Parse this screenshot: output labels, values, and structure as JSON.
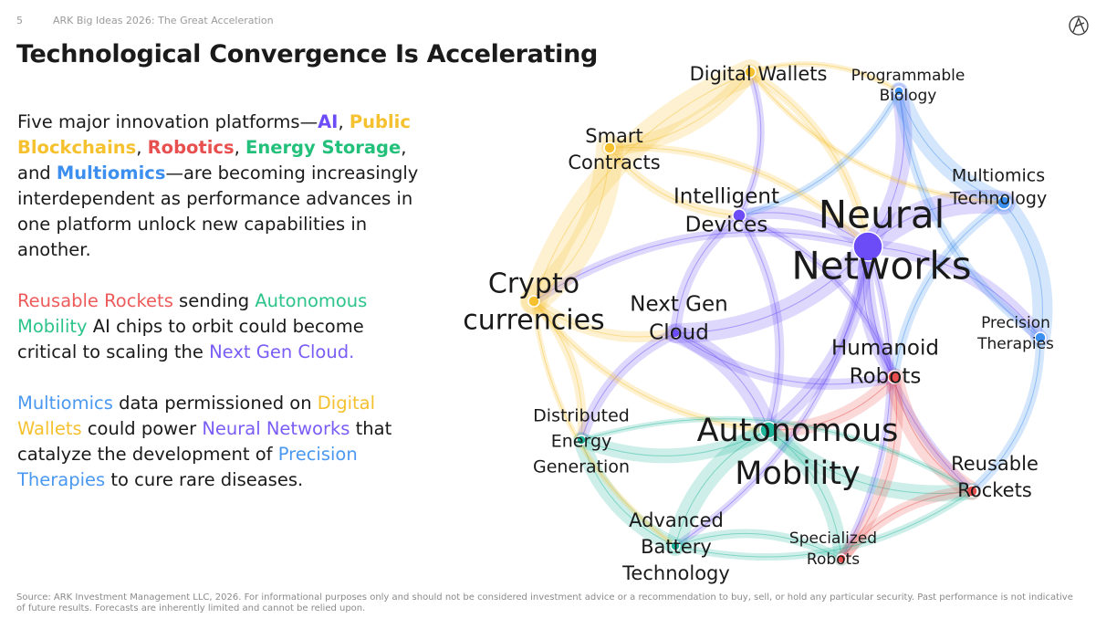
{
  "header": {
    "page_number": "5",
    "deck_title": "ARK Big Ideas 2026: The Great Acceleration"
  },
  "title": "Technological Convergence Is Accelerating",
  "paragraphs": [
    {
      "runs": [
        {
          "text": "Five major innovation platforms—",
          "color": "#1a1a1a",
          "bold": false
        },
        {
          "text": "AI",
          "color": "#6b4cf6",
          "bold": true
        },
        {
          "text": ", ",
          "color": "#1a1a1a",
          "bold": false
        },
        {
          "text": "Public Blockchains",
          "color": "#f6c12e",
          "bold": true
        },
        {
          "text": ", ",
          "color": "#1a1a1a",
          "bold": false
        },
        {
          "text": "Robotics",
          "color": "#e8504f",
          "bold": true
        },
        {
          "text": ", ",
          "color": "#1a1a1a",
          "bold": false
        },
        {
          "text": "Energy Storage",
          "color": "#22c07a",
          "bold": true
        },
        {
          "text": ", and ",
          "color": "#1a1a1a",
          "bold": false
        },
        {
          "text": "Multiomics",
          "color": "#3d8fef",
          "bold": true
        },
        {
          "text": "—are becoming increasingly interdependent as performance advances in one platform unlock new capabilities in another.",
          "color": "#1a1a1a",
          "bold": false
        }
      ]
    },
    {
      "runs": [
        {
          "text": "Reusable Rockets",
          "color": "#ee5b5b",
          "bold": false
        },
        {
          "text": " sending ",
          "color": "#1a1a1a",
          "bold": false
        },
        {
          "text": "Autonomous Mobility",
          "color": "#2cc48a",
          "bold": false
        },
        {
          "text": " AI chips to orbit could become critical to scaling the ",
          "color": "#1a1a1a",
          "bold": false
        },
        {
          "text": "Next Gen Cloud.",
          "color": "#7a5cf6",
          "bold": false
        }
      ]
    },
    {
      "runs": [
        {
          "text": "Multiomics",
          "color": "#4a98f0",
          "bold": false
        },
        {
          "text": " data permissioned on ",
          "color": "#1a1a1a",
          "bold": false
        },
        {
          "text": "Digital Wallets",
          "color": "#f6c12e",
          "bold": false
        },
        {
          "text": " could power ",
          "color": "#1a1a1a",
          "bold": false
        },
        {
          "text": "Neural Networks",
          "color": "#7a5cf6",
          "bold": false
        },
        {
          "text": " that catalyze the development of ",
          "color": "#1a1a1a",
          "bold": false
        },
        {
          "text": "Precision Therapies",
          "color": "#4a98f0",
          "bold": false
        },
        {
          "text": " to cure rare diseases.",
          "color": "#1a1a1a",
          "bold": false
        }
      ]
    }
  ],
  "nodes": [
    {
      "lines": [
        "Digital Wallets"
      ],
      "color": "#f6c12e"
    },
    {
      "lines": [
        "Programmable",
        "Biology"
      ],
      "color": "#3d8fef"
    },
    {
      "lines": [
        "Smart",
        "Contracts"
      ],
      "color": "#f6c12e"
    },
    {
      "lines": [
        "Intelligent",
        "Devices"
      ],
      "color": "#6b4cf6"
    },
    {
      "lines": [
        "Neural",
        "Networks"
      ],
      "color": "#6b4cf6"
    },
    {
      "lines": [
        "Multiomics",
        "Technology"
      ],
      "color": "#3d8fef"
    },
    {
      "lines": [
        "Crypto",
        "currencies"
      ],
      "color": "#f6c12e"
    },
    {
      "lines": [
        "Next Gen",
        "Cloud"
      ],
      "color": "#6b4cf6"
    },
    {
      "lines": [
        "Precision",
        "Therapies"
      ],
      "color": "#3d8fef"
    },
    {
      "lines": [
        "Humanoid",
        "Robots"
      ],
      "color": "#e8504f"
    },
    {
      "lines": [
        "Distributed",
        "Energy",
        "Generation"
      ],
      "color": "#1fb59a"
    },
    {
      "lines": [
        "Autonomous",
        "Mobility"
      ],
      "color": "#1fb59a"
    },
    {
      "lines": [
        "Reusable",
        "Rockets"
      ],
      "color": "#e8504f"
    },
    {
      "lines": [
        "Advanced",
        "Battery",
        "Technology"
      ],
      "color": "#1fb59a"
    },
    {
      "lines": [
        "Specialized",
        "Robots"
      ],
      "color": "#e8504f"
    }
  ],
  "footer": "Source: ARK Investment Management LLC, 2026. For informational purposes only and should not be considered investment advice or a recommendation to buy, sell, or hold any particular security. Past performance is not indicative of future results. Forecasts are inherently limited and cannot be relied upon."
}
